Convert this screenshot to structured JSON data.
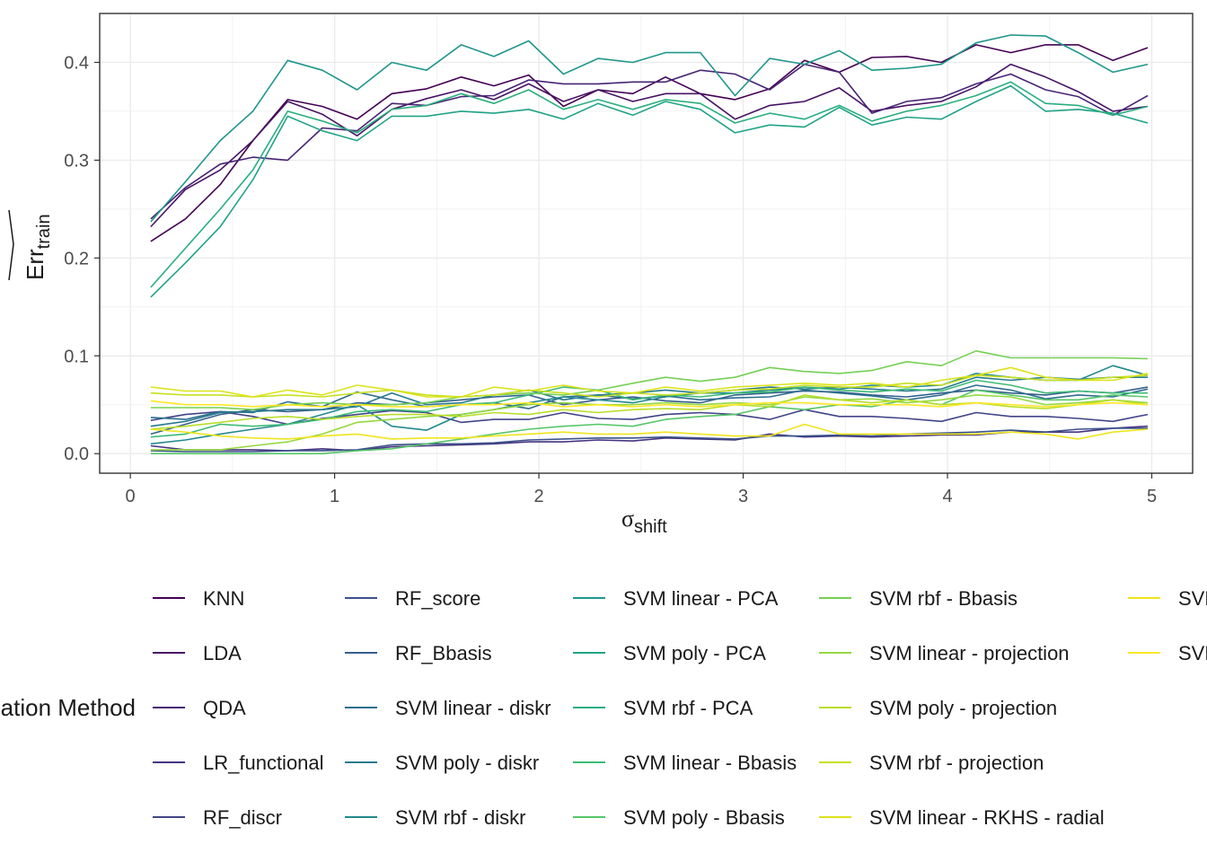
{
  "chart_data": {
    "type": "line",
    "xlabel": "σ",
    "xlabel_subscript": "shift",
    "ylabel": "Err",
    "ylabel_subscript": "train",
    "xlim": [
      -0.15,
      5.2
    ],
    "ylim": [
      -0.02,
      0.45
    ],
    "x_ticks": [
      0,
      1,
      2,
      3,
      4,
      5
    ],
    "y_ticks": [
      0.0,
      0.1,
      0.2,
      0.3,
      0.4
    ],
    "x_tick_labels": [
      "0",
      "1",
      "2",
      "3",
      "4",
      "5"
    ],
    "y_tick_labels": [
      "0.0",
      "0.1",
      "0.2",
      "0.3",
      "0.4"
    ],
    "grid": true,
    "legend_title": "Classification Method",
    "legend_position": "bottom",
    "x": [
      0.1,
      0.27,
      0.44,
      0.6,
      0.77,
      0.94,
      1.11,
      1.28,
      1.45,
      1.62,
      1.78,
      1.95,
      2.12,
      2.29,
      2.46,
      2.62,
      2.79,
      2.96,
      3.13,
      3.3,
      3.47,
      3.63,
      3.8,
      3.97,
      4.14,
      4.31,
      4.48,
      4.64,
      4.81,
      4.98
    ],
    "series": [
      {
        "name": "KNN",
        "color": "#440154",
        "values": [
          0.217,
          0.24,
          0.275,
          0.32,
          0.362,
          0.355,
          0.342,
          0.368,
          0.373,
          0.385,
          0.376,
          0.387,
          0.355,
          0.372,
          0.368,
          0.385,
          0.368,
          0.362,
          0.373,
          0.402,
          0.39,
          0.405,
          0.406,
          0.4,
          0.418,
          0.41,
          0.418,
          0.418,
          0.402,
          0.415
        ]
      },
      {
        "name": "LDA",
        "color": "#471365",
        "values": [
          0.232,
          0.27,
          0.29,
          0.32,
          0.36,
          0.347,
          0.325,
          0.352,
          0.363,
          0.372,
          0.362,
          0.378,
          0.36,
          0.372,
          0.36,
          0.368,
          0.368,
          0.342,
          0.356,
          0.36,
          0.374,
          0.35,
          0.356,
          0.36,
          0.375,
          0.398,
          0.385,
          0.37,
          0.35,
          0.355
        ]
      },
      {
        "name": "QDA",
        "color": "#482475",
        "values": [
          0.24,
          0.272,
          0.296,
          0.303,
          0.3,
          0.333,
          0.33,
          0.358,
          0.356,
          0.365,
          0.366,
          0.382,
          0.378,
          0.378,
          0.38,
          0.38,
          0.392,
          0.388,
          0.372,
          0.398,
          0.39,
          0.348,
          0.36,
          0.364,
          0.378,
          0.388,
          0.372,
          0.365,
          0.346,
          0.366
        ]
      },
      {
        "name": "LR_functional",
        "color": "#463480",
        "values": [
          0.008,
          0.004,
          0.004,
          0.004,
          0.003,
          0.005,
          0.003,
          0.007,
          0.008,
          0.009,
          0.01,
          0.012,
          0.012,
          0.014,
          0.013,
          0.016,
          0.015,
          0.014,
          0.02,
          0.017,
          0.018,
          0.017,
          0.018,
          0.019,
          0.019,
          0.022,
          0.022,
          0.022,
          0.026,
          0.028
        ]
      },
      {
        "name": "RF_discr",
        "color": "#414487",
        "values": [
          0.034,
          0.04,
          0.043,
          0.038,
          0.03,
          0.036,
          0.04,
          0.044,
          0.042,
          0.032,
          0.035,
          0.035,
          0.042,
          0.036,
          0.035,
          0.04,
          0.042,
          0.04,
          0.035,
          0.045,
          0.038,
          0.038,
          0.036,
          0.033,
          0.042,
          0.038,
          0.038,
          0.036,
          0.033,
          0.04
        ]
      },
      {
        "name": "RF_score",
        "color": "#3B528B",
        "values": [
          0.003,
          0.002,
          0.002,
          0.002,
          0.003,
          0.003,
          0.004,
          0.009,
          0.01,
          0.01,
          0.011,
          0.014,
          0.015,
          0.016,
          0.016,
          0.017,
          0.016,
          0.015,
          0.018,
          0.018,
          0.019,
          0.018,
          0.02,
          0.021,
          0.022,
          0.024,
          0.022,
          0.025,
          0.026,
          0.026
        ]
      },
      {
        "name": "RF_Bbasis",
        "color": "#355F8D",
        "values": [
          0.02,
          0.03,
          0.04,
          0.045,
          0.043,
          0.045,
          0.052,
          0.05,
          0.052,
          0.055,
          0.058,
          0.06,
          0.05,
          0.055,
          0.058,
          0.054,
          0.052,
          0.06,
          0.062,
          0.064,
          0.063,
          0.06,
          0.058,
          0.062,
          0.065,
          0.062,
          0.06,
          0.064,
          0.062,
          0.068
        ]
      },
      {
        "name": "SVM linear - diskr",
        "color": "#2E6E8E",
        "values": [
          0.037,
          0.035,
          0.043,
          0.042,
          0.053,
          0.048,
          0.063,
          0.055,
          0.048,
          0.05,
          0.052,
          0.046,
          0.058,
          0.06,
          0.056,
          0.059,
          0.055,
          0.057,
          0.058,
          0.065,
          0.062,
          0.059,
          0.055,
          0.06,
          0.07,
          0.065,
          0.056,
          0.06,
          0.058,
          0.066
        ]
      },
      {
        "name": "SVM poly - diskr",
        "color": "#297B8E",
        "values": [
          0.028,
          0.033,
          0.042,
          0.043,
          0.045,
          0.045,
          0.048,
          0.062,
          0.05,
          0.052,
          0.06,
          0.065,
          0.055,
          0.06,
          0.062,
          0.065,
          0.062,
          0.065,
          0.068,
          0.066,
          0.068,
          0.066,
          0.064,
          0.066,
          0.078,
          0.075,
          0.078,
          0.076,
          0.078,
          0.078
        ]
      },
      {
        "name": "SVM rbf - diskr",
        "color": "#23898E",
        "values": [
          0.01,
          0.014,
          0.02,
          0.025,
          0.03,
          0.04,
          0.05,
          0.028,
          0.024,
          0.04,
          0.045,
          0.052,
          0.058,
          0.055,
          0.052,
          0.058,
          0.062,
          0.062,
          0.065,
          0.068,
          0.066,
          0.07,
          0.068,
          0.07,
          0.082,
          0.078,
          0.075,
          0.075,
          0.09,
          0.08
        ]
      },
      {
        "name": "SVM linear - PCA",
        "color": "#1F968B",
        "values": [
          0.237,
          0.278,
          0.32,
          0.35,
          0.402,
          0.392,
          0.372,
          0.4,
          0.392,
          0.418,
          0.406,
          0.422,
          0.388,
          0.404,
          0.4,
          0.41,
          0.41,
          0.366,
          0.404,
          0.398,
          0.412,
          0.392,
          0.394,
          0.398,
          0.42,
          0.428,
          0.427,
          0.41,
          0.39,
          0.398
        ]
      },
      {
        "name": "SVM poly - PCA",
        "color": "#20A386",
        "values": [
          0.16,
          0.195,
          0.232,
          0.28,
          0.345,
          0.33,
          0.32,
          0.345,
          0.345,
          0.35,
          0.348,
          0.352,
          0.342,
          0.358,
          0.346,
          0.36,
          0.352,
          0.328,
          0.336,
          0.334,
          0.354,
          0.336,
          0.344,
          0.342,
          0.36,
          0.376,
          0.35,
          0.352,
          0.348,
          0.338
        ]
      },
      {
        "name": "SVM rbf - PCA",
        "color": "#29AF7F",
        "values": [
          0.17,
          0.21,
          0.25,
          0.29,
          0.35,
          0.34,
          0.328,
          0.352,
          0.356,
          0.368,
          0.358,
          0.372,
          0.352,
          0.362,
          0.352,
          0.362,
          0.358,
          0.338,
          0.348,
          0.342,
          0.356,
          0.34,
          0.35,
          0.356,
          0.366,
          0.38,
          0.358,
          0.356,
          0.346,
          0.355
        ]
      },
      {
        "name": "SVM linear - Bbasis",
        "color": "#3CBC75",
        "values": [
          0.017,
          0.02,
          0.03,
          0.028,
          0.03,
          0.035,
          0.043,
          0.045,
          0.043,
          0.05,
          0.052,
          0.06,
          0.068,
          0.065,
          0.055,
          0.06,
          0.058,
          0.062,
          0.063,
          0.068,
          0.065,
          0.063,
          0.066,
          0.064,
          0.075,
          0.07,
          0.062,
          0.064,
          0.062,
          0.062
        ]
      },
      {
        "name": "SVM poly - Bbasis",
        "color": "#56C667",
        "values": [
          0.0,
          0.0,
          0.0,
          0.0,
          0.0,
          0.0,
          0.003,
          0.005,
          0.01,
          0.015,
          0.02,
          0.025,
          0.028,
          0.03,
          0.028,
          0.035,
          0.038,
          0.04,
          0.048,
          0.045,
          0.05,
          0.048,
          0.055,
          0.05,
          0.065,
          0.06,
          0.055,
          0.055,
          0.06,
          0.058
        ]
      },
      {
        "name": "SVM rbf - Bbasis",
        "color": "#75D054",
        "values": [
          0.047,
          0.047,
          0.047,
          0.045,
          0.05,
          0.052,
          0.05,
          0.05,
          0.052,
          0.058,
          0.06,
          0.062,
          0.06,
          0.065,
          0.072,
          0.078,
          0.074,
          0.078,
          0.088,
          0.084,
          0.082,
          0.085,
          0.094,
          0.09,
          0.105,
          0.098,
          0.098,
          0.098,
          0.098,
          0.097
        ]
      },
      {
        "name": "SVM linear - projection",
        "color": "#95D840",
        "values": [
          0.004,
          0.004,
          0.004,
          0.008,
          0.012,
          0.02,
          0.032,
          0.035,
          0.038,
          0.04,
          0.045,
          0.05,
          0.052,
          0.05,
          0.05,
          0.052,
          0.05,
          0.052,
          0.05,
          0.058,
          0.055,
          0.056,
          0.052,
          0.055,
          0.06,
          0.058,
          0.05,
          0.052,
          0.055,
          0.052
        ]
      },
      {
        "name": "SVM poly - projection",
        "color": "#B8DE29",
        "values": [
          0.025,
          0.028,
          0.032,
          0.036,
          0.038,
          0.035,
          0.038,
          0.04,
          0.04,
          0.038,
          0.042,
          0.04,
          0.045,
          0.042,
          0.045,
          0.046,
          0.045,
          0.05,
          0.048,
          0.06,
          0.055,
          0.052,
          0.055,
          0.05,
          0.052,
          0.048,
          0.046,
          0.05,
          0.055,
          0.05
        ]
      },
      {
        "name": "SVM rbf - projection",
        "color": "#C7E020",
        "values": [
          0.062,
          0.06,
          0.06,
          0.058,
          0.06,
          0.058,
          0.062,
          0.065,
          0.06,
          0.058,
          0.06,
          0.065,
          0.062,
          0.058,
          0.062,
          0.06,
          0.062,
          0.065,
          0.066,
          0.07,
          0.068,
          0.068,
          0.072,
          0.07,
          0.08,
          0.078,
          0.075,
          0.075,
          0.078,
          0.08
        ]
      },
      {
        "name": "SVM linear - RKHS - radial",
        "color": "#DCE319",
        "values": [
          0.068,
          0.064,
          0.064,
          0.058,
          0.065,
          0.06,
          0.07,
          0.065,
          0.058,
          0.058,
          0.068,
          0.064,
          0.07,
          0.064,
          0.062,
          0.068,
          0.064,
          0.068,
          0.07,
          0.072,
          0.07,
          0.072,
          0.068,
          0.075,
          0.08,
          0.088,
          0.078,
          0.075,
          0.075,
          0.082
        ]
      },
      {
        "name": "SVM poly - RKHS - radial",
        "color": "#EFE51C",
        "values": [
          0.025,
          0.022,
          0.018,
          0.016,
          0.015,
          0.018,
          0.02,
          0.015,
          0.016,
          0.016,
          0.018,
          0.02,
          0.022,
          0.02,
          0.02,
          0.022,
          0.02,
          0.018,
          0.018,
          0.03,
          0.02,
          0.02,
          0.02,
          0.02,
          0.02,
          0.022,
          0.02,
          0.015,
          0.022,
          0.025
        ]
      },
      {
        "name": "SVM rbf - RKHS - radial",
        "color": "#FDE725",
        "values": [
          0.054,
          0.05,
          0.05,
          0.048,
          0.05,
          0.048,
          0.05,
          0.048,
          0.048,
          0.05,
          0.05,
          0.052,
          0.048,
          0.05,
          0.048,
          0.05,
          0.048,
          0.05,
          0.052,
          0.052,
          0.05,
          0.05,
          0.05,
          0.048,
          0.052,
          0.05,
          0.048,
          0.05,
          0.052,
          0.05
        ]
      }
    ]
  }
}
